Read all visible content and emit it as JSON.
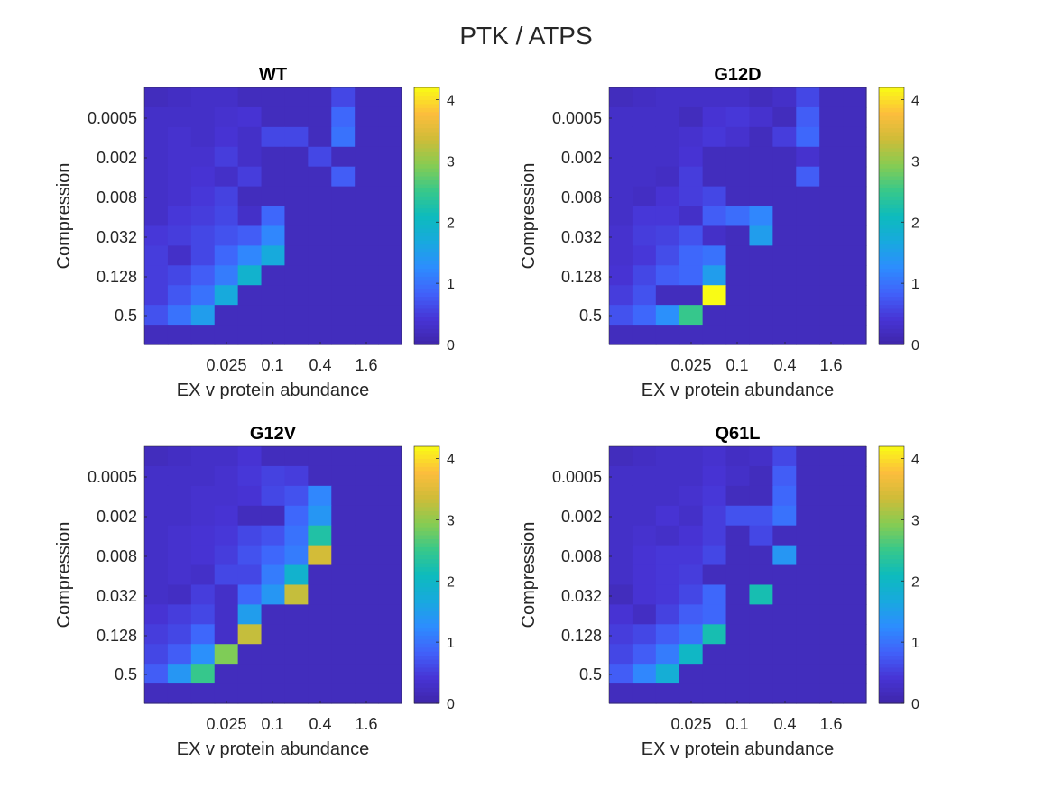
{
  "figure_title": "PTK / ATPS",
  "chart_data": [
    {
      "type": "heatmap",
      "title": "WT",
      "xlabel": "EX v protein abundance",
      "ylabel": "Compression",
      "x_tick_labels": [
        "0.025",
        "0.1",
        "0.4",
        "1.6"
      ],
      "y_tick_labels": [
        "0.0005",
        "0.002",
        "0.008",
        "0.032",
        "0.128",
        "0.5"
      ],
      "colorbar": {
        "min": 0,
        "max": 4.2,
        "ticks": [
          0,
          1,
          2,
          3,
          4
        ],
        "colormap": "parula"
      },
      "values": [
        [
          0.2,
          0.25,
          0.3,
          0.3,
          0.2,
          0.2,
          0.2,
          0.2,
          0.6,
          0.2,
          0.2
        ],
        [
          0.3,
          0.3,
          0.3,
          0.35,
          0.4,
          0.2,
          0.2,
          0.2,
          0.9,
          0.2,
          0.2
        ],
        [
          0.3,
          0.35,
          0.3,
          0.4,
          0.3,
          0.6,
          0.6,
          0.2,
          1.0,
          0.2,
          0.2
        ],
        [
          0.3,
          0.35,
          0.35,
          0.5,
          0.3,
          0.2,
          0.2,
          0.6,
          0.2,
          0.2,
          0.2
        ],
        [
          0.3,
          0.35,
          0.4,
          0.3,
          0.5,
          0.2,
          0.2,
          0.2,
          0.8,
          0.2,
          0.2
        ],
        [
          0.3,
          0.35,
          0.45,
          0.55,
          0.2,
          0.2,
          0.2,
          0.2,
          0.2,
          0.2,
          0.2
        ],
        [
          0.3,
          0.45,
          0.5,
          0.6,
          0.3,
          0.9,
          0.2,
          0.2,
          0.2,
          0.2,
          0.2
        ],
        [
          0.45,
          0.5,
          0.6,
          0.7,
          0.8,
          1.2,
          0.2,
          0.2,
          0.2,
          0.2,
          0.2
        ],
        [
          0.5,
          0.3,
          0.6,
          0.9,
          1.2,
          1.7,
          0.2,
          0.2,
          0.2,
          0.2,
          0.2
        ],
        [
          0.5,
          0.6,
          0.8,
          1.1,
          1.9,
          0.2,
          0.2,
          0.2,
          0.2,
          0.2,
          0.2
        ],
        [
          0.5,
          0.75,
          1.0,
          1.7,
          0.2,
          0.2,
          0.2,
          0.2,
          0.2,
          0.2,
          0.2
        ],
        [
          0.7,
          1.0,
          1.5,
          0.2,
          0.2,
          0.2,
          0.2,
          0.2,
          0.2,
          0.2,
          0.2
        ],
        [
          0.2,
          0.2,
          0.2,
          0.2,
          0.2,
          0.2,
          0.2,
          0.2,
          0.2,
          0.2,
          0.2
        ]
      ]
    },
    {
      "type": "heatmap",
      "title": "G12D",
      "xlabel": "EX v protein abundance",
      "ylabel": "Compression",
      "x_tick_labels": [
        "0.025",
        "0.1",
        "0.4",
        "1.6"
      ],
      "y_tick_labels": [
        "0.0005",
        "0.002",
        "0.008",
        "0.032",
        "0.128",
        "0.5"
      ],
      "colorbar": {
        "min": 0,
        "max": 4.2,
        "ticks": [
          0,
          1,
          2,
          3,
          4
        ],
        "colormap": "parula"
      },
      "values": [
        [
          0.2,
          0.25,
          0.3,
          0.3,
          0.3,
          0.3,
          0.2,
          0.3,
          0.6,
          0.2,
          0.2
        ],
        [
          0.3,
          0.3,
          0.3,
          0.2,
          0.4,
          0.45,
          0.35,
          0.2,
          0.8,
          0.2,
          0.2
        ],
        [
          0.3,
          0.3,
          0.3,
          0.35,
          0.45,
          0.35,
          0.2,
          0.5,
          0.9,
          0.2,
          0.2
        ],
        [
          0.3,
          0.3,
          0.3,
          0.4,
          0.2,
          0.2,
          0.2,
          0.2,
          0.35,
          0.2,
          0.2
        ],
        [
          0.3,
          0.3,
          0.25,
          0.5,
          0.2,
          0.2,
          0.2,
          0.2,
          0.8,
          0.2,
          0.2
        ],
        [
          0.3,
          0.25,
          0.4,
          0.5,
          0.6,
          0.2,
          0.2,
          0.2,
          0.2,
          0.2,
          0.2
        ],
        [
          0.3,
          0.45,
          0.45,
          0.3,
          0.8,
          0.95,
          1.2,
          0.2,
          0.2,
          0.2,
          0.2
        ],
        [
          0.35,
          0.5,
          0.55,
          0.7,
          0.3,
          0.2,
          1.5,
          0.2,
          0.2,
          0.2,
          0.2
        ],
        [
          0.35,
          0.45,
          0.65,
          0.9,
          1.0,
          0.2,
          0.2,
          0.2,
          0.2,
          0.2,
          0.2
        ],
        [
          0.4,
          0.6,
          0.8,
          0.9,
          1.5,
          0.2,
          0.2,
          0.2,
          0.2,
          0.2,
          0.2
        ],
        [
          0.5,
          0.7,
          0.2,
          0.2,
          4.2,
          0.2,
          0.2,
          0.2,
          0.2,
          0.2,
          0.2
        ],
        [
          0.7,
          0.9,
          1.3,
          2.5,
          0.2,
          0.2,
          0.2,
          0.2,
          0.2,
          0.2,
          0.2
        ],
        [
          0.2,
          0.2,
          0.2,
          0.2,
          0.2,
          0.2,
          0.2,
          0.2,
          0.2,
          0.2,
          0.2
        ]
      ]
    },
    {
      "type": "heatmap",
      "title": "G12V",
      "xlabel": "EX v protein abundance",
      "ylabel": "Compression",
      "x_tick_labels": [
        "0.025",
        "0.1",
        "0.4",
        "1.6"
      ],
      "y_tick_labels": [
        "0.0005",
        "0.002",
        "0.008",
        "0.032",
        "0.128",
        "0.5"
      ],
      "colorbar": {
        "min": 0,
        "max": 4.2,
        "ticks": [
          0,
          1,
          2,
          3,
          4
        ],
        "colormap": "parula"
      },
      "values": [
        [
          0.2,
          0.25,
          0.3,
          0.3,
          0.4,
          0.2,
          0.2,
          0.2,
          0.2,
          0.2,
          0.2
        ],
        [
          0.3,
          0.3,
          0.3,
          0.35,
          0.45,
          0.55,
          0.5,
          0.2,
          0.2,
          0.2,
          0.2
        ],
        [
          0.3,
          0.3,
          0.35,
          0.35,
          0.4,
          0.6,
          0.7,
          1.2,
          0.2,
          0.2,
          0.2
        ],
        [
          0.3,
          0.3,
          0.35,
          0.4,
          0.2,
          0.2,
          0.9,
          1.4,
          0.2,
          0.2,
          0.2
        ],
        [
          0.3,
          0.35,
          0.4,
          0.45,
          0.6,
          0.7,
          1.0,
          2.3,
          0.2,
          0.2,
          0.2
        ],
        [
          0.3,
          0.35,
          0.4,
          0.5,
          0.7,
          0.9,
          1.1,
          3.4,
          0.2,
          0.2,
          0.2
        ],
        [
          0.3,
          0.35,
          0.3,
          0.6,
          0.6,
          1.1,
          1.9,
          0.2,
          0.2,
          0.2,
          0.2
        ],
        [
          0.3,
          0.25,
          0.5,
          0.3,
          0.9,
          1.4,
          3.3,
          0.2,
          0.2,
          0.2,
          0.2
        ],
        [
          0.4,
          0.5,
          0.6,
          0.3,
          1.5,
          0.2,
          0.2,
          0.2,
          0.2,
          0.2,
          0.2
        ],
        [
          0.5,
          0.6,
          0.9,
          0.3,
          3.3,
          0.2,
          0.2,
          0.2,
          0.2,
          0.2,
          0.2
        ],
        [
          0.6,
          0.8,
          1.3,
          2.9,
          0.2,
          0.2,
          0.2,
          0.2,
          0.2,
          0.2,
          0.2
        ],
        [
          0.8,
          1.4,
          2.5,
          0.2,
          0.2,
          0.2,
          0.2,
          0.2,
          0.2,
          0.2,
          0.2
        ],
        [
          0.2,
          0.2,
          0.2,
          0.2,
          0.2,
          0.2,
          0.2,
          0.2,
          0.2,
          0.2,
          0.2
        ]
      ]
    },
    {
      "type": "heatmap",
      "title": "Q61L",
      "xlabel": "EX v protein abundance",
      "ylabel": "Compression",
      "x_tick_labels": [
        "0.025",
        "0.1",
        "0.4",
        "1.6"
      ],
      "y_tick_labels": [
        "0.0005",
        "0.002",
        "0.008",
        "0.032",
        "0.128",
        "0.5"
      ],
      "colorbar": {
        "min": 0,
        "max": 4.2,
        "ticks": [
          0,
          1,
          2,
          3,
          4
        ],
        "colormap": "parula"
      },
      "values": [
        [
          0.2,
          0.25,
          0.3,
          0.3,
          0.35,
          0.25,
          0.3,
          0.6,
          0.2,
          0.2,
          0.2
        ],
        [
          0.3,
          0.3,
          0.3,
          0.3,
          0.4,
          0.3,
          0.2,
          0.8,
          0.2,
          0.2,
          0.2
        ],
        [
          0.3,
          0.3,
          0.3,
          0.35,
          0.45,
          0.2,
          0.2,
          0.9,
          0.2,
          0.2,
          0.2
        ],
        [
          0.3,
          0.3,
          0.4,
          0.3,
          0.5,
          0.7,
          0.7,
          1.0,
          0.2,
          0.2,
          0.2
        ],
        [
          0.3,
          0.35,
          0.3,
          0.4,
          0.5,
          0.2,
          0.6,
          0.2,
          0.2,
          0.2,
          0.2
        ],
        [
          0.3,
          0.4,
          0.45,
          0.45,
          0.6,
          0.2,
          0.2,
          1.4,
          0.2,
          0.2,
          0.2
        ],
        [
          0.3,
          0.4,
          0.45,
          0.5,
          0.2,
          0.2,
          0.2,
          0.2,
          0.2,
          0.2,
          0.2
        ],
        [
          0.2,
          0.4,
          0.45,
          0.6,
          0.9,
          0.2,
          2.2,
          0.2,
          0.2,
          0.2,
          0.2
        ],
        [
          0.4,
          0.25,
          0.55,
          0.8,
          0.9,
          0.2,
          0.2,
          0.2,
          0.2,
          0.2,
          0.2
        ],
        [
          0.5,
          0.6,
          0.8,
          1.0,
          2.2,
          0.2,
          0.2,
          0.2,
          0.2,
          0.2,
          0.2
        ],
        [
          0.6,
          0.8,
          1.1,
          2.0,
          0.2,
          0.2,
          0.2,
          0.2,
          0.2,
          0.2,
          0.2
        ],
        [
          0.8,
          1.2,
          1.8,
          0.2,
          0.2,
          0.2,
          0.2,
          0.2,
          0.2,
          0.2,
          0.2
        ],
        [
          0.2,
          0.2,
          0.2,
          0.2,
          0.2,
          0.2,
          0.2,
          0.2,
          0.2,
          0.2,
          0.2
        ]
      ]
    }
  ]
}
